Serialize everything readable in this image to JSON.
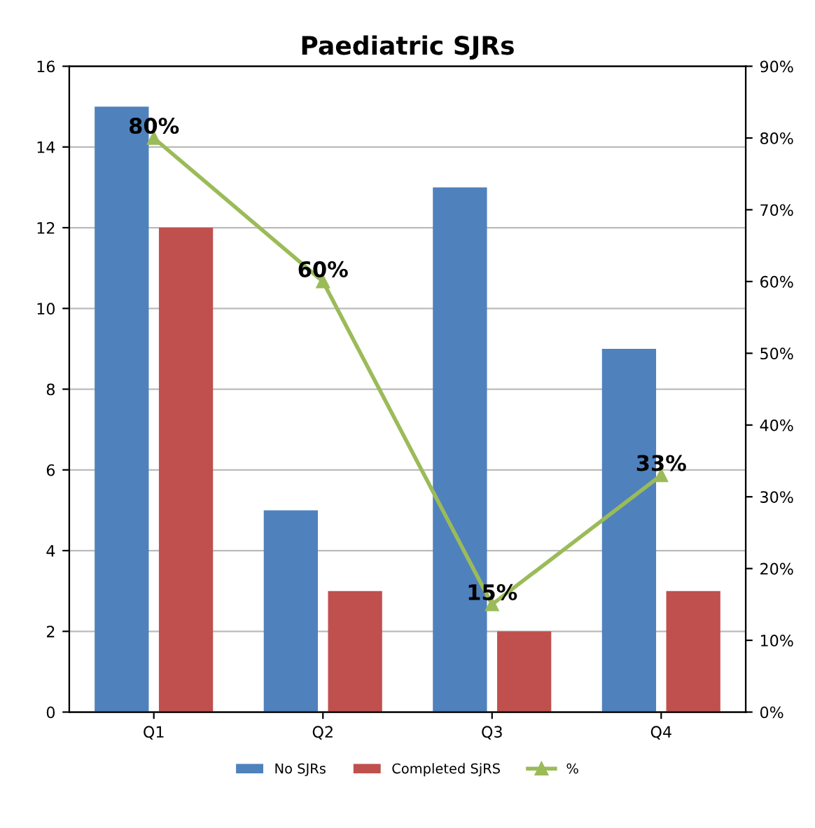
{
  "chart_data": {
    "type": "bar",
    "title": "Paediatric SJRs",
    "categories": [
      "Q1",
      "Q2",
      "Q3",
      "Q4"
    ],
    "series": [
      {
        "name": "No SJRs",
        "color": "#4f81bd",
        "values": [
          15,
          5,
          13,
          9
        ]
      },
      {
        "name": "Completed SjRS",
        "color": "#c0504d",
        "values": [
          12,
          3,
          2,
          3
        ]
      },
      {
        "name": "%",
        "type": "line",
        "axis": "y2",
        "color": "#9bbb59",
        "marker": "triangle",
        "values": [
          80,
          60,
          15,
          33
        ],
        "value_labels": [
          "80%",
          "60%",
          "15%",
          "33%"
        ]
      }
    ],
    "ylim": [
      0,
      16
    ],
    "yticks": [
      0,
      2,
      4,
      6,
      8,
      10,
      12,
      14,
      16
    ],
    "y2lim": [
      0,
      90
    ],
    "y2ticks": [
      {
        "value": 0,
        "label": "0%"
      },
      {
        "value": 10,
        "label": "10%"
      },
      {
        "value": 20,
        "label": "20%"
      },
      {
        "value": 30,
        "label": "30%"
      },
      {
        "value": 40,
        "label": "40%"
      },
      {
        "value": 50,
        "label": "50%"
      },
      {
        "value": 60,
        "label": "60%"
      },
      {
        "value": 70,
        "label": "70%"
      },
      {
        "value": 80,
        "label": "80%"
      },
      {
        "value": 90,
        "label": "90%"
      }
    ],
    "grid": "y",
    "legend": "bottom"
  }
}
